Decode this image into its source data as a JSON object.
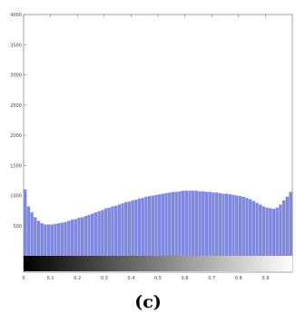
{
  "caption": "(c)",
  "chart_data": {
    "type": "bar",
    "title": "",
    "xlabel": "",
    "ylabel": "",
    "xlim": [
      0,
      1
    ],
    "ylim": [
      0,
      4000
    ],
    "xticks": [
      0,
      0.1,
      0.2,
      0.3,
      0.4,
      0.5,
      0.6,
      0.7,
      0.8,
      0.9
    ],
    "xtick_labels": [
      "0",
      "0.1",
      "0.2",
      "0.3",
      "0.4",
      "0.5",
      "0.6",
      "0.7",
      "0.8",
      "0.9"
    ],
    "yticks": [
      500,
      1000,
      1500,
      2000,
      2500,
      3000,
      3500,
      4000
    ],
    "ytick_labels": [
      "500",
      "1000",
      "1500",
      "2000",
      "2500",
      "3000",
      "3500",
      "4000"
    ],
    "grid": false,
    "bar_color": "#8088de",
    "colorbar": {
      "from_color": "#000000",
      "to_color": "#ffffff"
    },
    "bin_width": 0.0125,
    "bin_centers": [
      0.00625,
      0.01875,
      0.03125,
      0.04375,
      0.05625,
      0.06875,
      0.08125,
      0.09375,
      0.10625,
      0.11875,
      0.13125,
      0.14375,
      0.15625,
      0.16875,
      0.18125,
      0.19375,
      0.20625,
      0.21875,
      0.23125,
      0.24375,
      0.25625,
      0.26875,
      0.28125,
      0.29375,
      0.30625,
      0.31875,
      0.33125,
      0.34375,
      0.35625,
      0.36875,
      0.38125,
      0.39375,
      0.40625,
      0.41875,
      0.43125,
      0.44375,
      0.45625,
      0.46875,
      0.48125,
      0.49375,
      0.50625,
      0.51875,
      0.53125,
      0.54375,
      0.55625,
      0.56875,
      0.58125,
      0.59375,
      0.60625,
      0.61875,
      0.63125,
      0.64375,
      0.65625,
      0.66875,
      0.68125,
      0.69375,
      0.70625,
      0.71875,
      0.73125,
      0.74375,
      0.75625,
      0.76875,
      0.78125,
      0.79375,
      0.80625,
      0.81875,
      0.83125,
      0.84375,
      0.85625,
      0.86875,
      0.88125,
      0.89375,
      0.90625,
      0.91875,
      0.93125,
      0.94375,
      0.95625,
      0.96875,
      0.98125,
      0.99375
    ],
    "values": [
      1100,
      820,
      720,
      640,
      580,
      540,
      520,
      520,
      520,
      530,
      540,
      550,
      560,
      580,
      600,
      610,
      630,
      640,
      660,
      680,
      700,
      720,
      740,
      760,
      790,
      800,
      820,
      830,
      850,
      870,
      890,
      900,
      920,
      930,
      950,
      960,
      980,
      990,
      1000,
      1010,
      1020,
      1030,
      1040,
      1050,
      1060,
      1060,
      1070,
      1080,
      1080,
      1080,
      1080,
      1080,
      1070,
      1070,
      1060,
      1060,
      1050,
      1050,
      1040,
      1030,
      1030,
      1020,
      1010,
      1000,
      990,
      980,
      960,
      940,
      910,
      880,
      850,
      820,
      800,
      790,
      780,
      800,
      850,
      920,
      980,
      1060
    ]
  }
}
